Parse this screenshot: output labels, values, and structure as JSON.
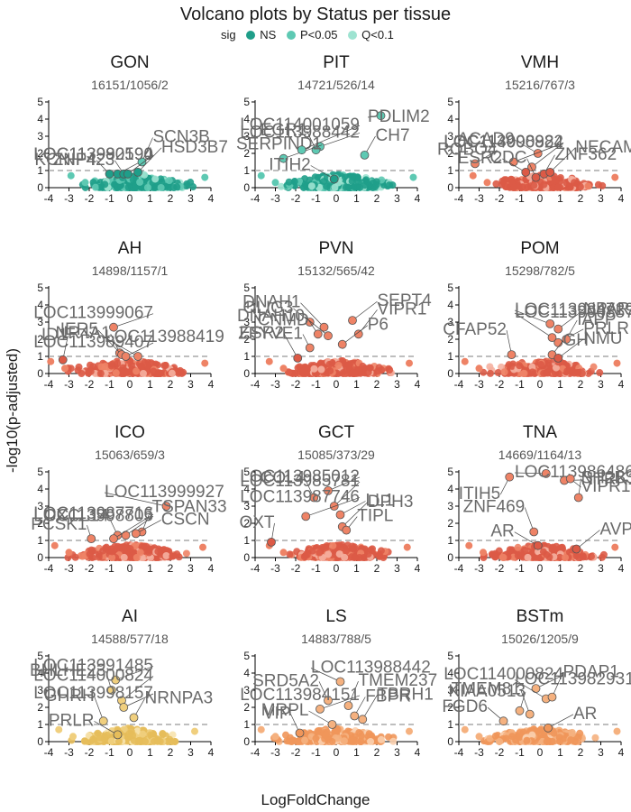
{
  "title": "Volcano plots by Status per tissue",
  "legend": {
    "title": "sig",
    "items": [
      {
        "label": "NS",
        "color": "#1f9e89"
      },
      {
        "label": "P<0.05",
        "color": "#5ec9b3"
      },
      {
        "label": "Q<0.1",
        "color": "#9ee3d1"
      }
    ]
  },
  "xlabel": "LogFoldChange",
  "ylabel": "-log10(p-adjusted)",
  "chart_data": [
    {
      "type": "scatter",
      "tissue": "GON",
      "subtitle": "16151/1056/2",
      "xlim": [
        -4,
        4
      ],
      "ylim": [
        0,
        5
      ],
      "xticks": [
        -4,
        -3,
        -2,
        -1,
        0,
        1,
        2,
        3,
        4
      ],
      "yticks": [
        0,
        1,
        2,
        3,
        4,
        5
      ],
      "threshold": 1,
      "colors": {
        "ns": "#1f9e89",
        "p": "#5ec9b3",
        "q": "#9ee3d1"
      },
      "cloud": [
        -2.6,
        3.5
      ],
      "highlights": [
        {
          "x": -1.0,
          "y": 0.8,
          "label": "KCNIP4"
        },
        {
          "x": -0.6,
          "y": 0.8,
          "label": "LOC113990590"
        },
        {
          "x": 0.6,
          "y": 1.5,
          "label": "SCN3B"
        },
        {
          "x": -0.3,
          "y": 0.8,
          "label": "ZNF423"
        },
        {
          "x": -0.1,
          "y": 0.8,
          "label": "LOC113982194"
        },
        {
          "x": 0.4,
          "y": 0.9,
          "label": "HSD3B7"
        }
      ]
    },
    {
      "type": "scatter",
      "tissue": "PIT",
      "subtitle": "14721/526/14",
      "xlim": [
        -4,
        4
      ],
      "ylim": [
        0,
        5
      ],
      "xticks": [
        -4,
        -3,
        -2,
        -1,
        0,
        1,
        2,
        3,
        4
      ],
      "yticks": [
        0,
        1,
        2,
        3,
        4,
        5
      ],
      "threshold": 1,
      "colors": {
        "ns": "#1f9e89",
        "p": "#5ec9b3",
        "q": "#9ee3d1"
      },
      "cloud": [
        -3.4,
        3.6
      ],
      "highlights": [
        {
          "x": -0.8,
          "y": 2.4,
          "label": "LOC113988442"
        },
        {
          "x": -1.0,
          "y": 2.2,
          "label": "EGR1"
        },
        {
          "x": 2.2,
          "y": 4.2,
          "label": "PDLIM2"
        },
        {
          "x": -2.6,
          "y": 1.7,
          "label": "SERPIND1"
        },
        {
          "x": 1.4,
          "y": 1.9,
          "label": "CH7"
        },
        {
          "x": -1.7,
          "y": 2.2,
          "label": "LOC114001059"
        },
        {
          "x": -0.1,
          "y": 0.5,
          "label": "ITIH2"
        }
      ]
    },
    {
      "type": "scatter",
      "tissue": "VMH",
      "subtitle": "15216/767/3",
      "xlim": [
        -4,
        4
      ],
      "ylim": [
        0,
        5
      ],
      "xticks": [
        -4,
        -3,
        -2,
        -1,
        0,
        1,
        2,
        3,
        4
      ],
      "yticks": [
        0,
        1,
        2,
        3,
        4,
        5
      ],
      "threshold": 1,
      "colors": {
        "ns": "#dc5a46",
        "p": "#ee8366",
        "q": "#f5b0a0"
      },
      "cloud": [
        -3.0,
        3.5
      ],
      "highlights": [
        {
          "x": -0.1,
          "y": 2.0,
          "label": "ACAD9"
        },
        {
          "x": -1.3,
          "y": 1.5,
          "label": "LOC114000824"
        },
        {
          "x": -0.4,
          "y": 1.2,
          "label": "LOC113998982"
        },
        {
          "x": -3.2,
          "y": 1.4,
          "label": "ROBO4"
        },
        {
          "x": 0.2,
          "y": 0.8,
          "label": "ZNF362"
        },
        {
          "x": 0.5,
          "y": 0.9,
          "label": "NECAM"
        },
        {
          "x": -0.7,
          "y": 0.9,
          "label": "ESR2"
        },
        {
          "x": -0.2,
          "y": 0.6,
          "label": "CDC"
        }
      ]
    },
    {
      "type": "scatter",
      "tissue": "AH",
      "subtitle": "14898/1157/1",
      "xlim": [
        -4,
        4
      ],
      "ylim": [
        0,
        5
      ],
      "xticks": [
        -4,
        -3,
        -2,
        -1,
        0,
        1,
        2,
        3,
        4
      ],
      "yticks": [
        0,
        1,
        2,
        3,
        4,
        5
      ],
      "threshold": 1,
      "colors": {
        "ns": "#dc5a46",
        "p": "#ee8366",
        "q": "#f5b0a0"
      },
      "cloud": [
        -3.6,
        3.5
      ],
      "highlights": [
        {
          "x": -0.8,
          "y": 2.7,
          "label": "LOC113999067"
        },
        {
          "x": -0.5,
          "y": 1.2,
          "label": "NR4A1"
        },
        {
          "x": -0.4,
          "y": 1.1,
          "label": "IER5"
        },
        {
          "x": -0.2,
          "y": 1.0,
          "label": "LOC113989407"
        },
        {
          "x": 0.4,
          "y": 1.0,
          "label": "LOC113988419"
        },
        {
          "x": -3.3,
          "y": 0.8,
          "label": "ID1"
        }
      ]
    },
    {
      "type": "scatter",
      "tissue": "PVN",
      "subtitle": "15132/565/42",
      "xlim": [
        -4,
        4
      ],
      "ylim": [
        0,
        5
      ],
      "xticks": [
        -4,
        -3,
        -2,
        -1,
        0,
        1,
        2,
        3,
        4
      ],
      "yticks": [
        0,
        1,
        2,
        3,
        4,
        5
      ],
      "threshold": 1,
      "colors": {
        "ns": "#dc5a46",
        "p": "#ee8366",
        "q": "#f5b0a0"
      },
      "cloud": [
        -3.0,
        3.4
      ],
      "highlights": [
        {
          "x": -1.3,
          "y": 3.0,
          "label": "OLIG3"
        },
        {
          "x": 0.8,
          "y": 3.1,
          "label": "SEPT4"
        },
        {
          "x": -0.6,
          "y": 2.7,
          "label": "DNAH1"
        },
        {
          "x": -0.9,
          "y": 2.3,
          "label": "CNMD"
        },
        {
          "x": -0.4,
          "y": 2.2,
          "label": "DNAH10"
        },
        {
          "x": 1.1,
          "y": 2.3,
          "label": "VIPR1"
        },
        {
          "x": -1.3,
          "y": 1.5,
          "label": "ZFYVE1"
        },
        {
          "x": 0.3,
          "y": 1.7,
          "label": "P6"
        },
        {
          "x": -1.9,
          "y": 0.9,
          "label": "ESR2"
        }
      ]
    },
    {
      "type": "scatter",
      "tissue": "POM",
      "subtitle": "15298/782/5",
      "xlim": [
        -4,
        4
      ],
      "ylim": [
        0,
        5
      ],
      "xticks": [
        -4,
        -3,
        -2,
        -1,
        0,
        1,
        2,
        3,
        4
      ],
      "yticks": [
        0,
        1,
        2,
        3,
        4,
        5
      ],
      "threshold": 1,
      "colors": {
        "ns": "#dc5a46",
        "p": "#ee8366",
        "q": "#f5b0a0"
      },
      "cloud": [
        -3.4,
        3.6
      ],
      "highlights": [
        {
          "x": 0.5,
          "y": 2.9,
          "label": "LOC113984729"
        },
        {
          "x": 0.9,
          "y": 2.6,
          "label": "NPAR"
        },
        {
          "x": 0.6,
          "y": 2.1,
          "label": "LOC113990857"
        },
        {
          "x": 0.9,
          "y": 1.8,
          "label": "PRLR"
        },
        {
          "x": 1.3,
          "y": 2.0,
          "label": "IAPP"
        },
        {
          "x": -1.4,
          "y": 1.1,
          "label": "CFAP52"
        },
        {
          "x": 0.6,
          "y": 1.1,
          "label": "GH"
        },
        {
          "x": 0.9,
          "y": 0.9,
          "label": "NMU"
        }
      ]
    },
    {
      "type": "scatter",
      "tissue": "ICO",
      "subtitle": "15063/659/3",
      "xlim": [
        -4,
        4
      ],
      "ylim": [
        0,
        5
      ],
      "xticks": [
        -4,
        -3,
        -2,
        -1,
        0,
        1,
        2,
        3,
        4
      ],
      "yticks": [
        0,
        1,
        2,
        3,
        4,
        5
      ],
      "threshold": 1,
      "colors": {
        "ns": "#dc5a46",
        "p": "#ee8366",
        "q": "#f5b0a0"
      },
      "cloud": [
        -3.4,
        3.4
      ],
      "highlights": [
        {
          "x": 1.8,
          "y": 3.0,
          "label": "LOC113999927"
        },
        {
          "x": -0.6,
          "y": 1.3,
          "label": "CXCL14"
        },
        {
          "x": 0.6,
          "y": 1.5,
          "label": "TSPAN33"
        },
        {
          "x": 0.3,
          "y": 1.4,
          "label": "CSCN"
        },
        {
          "x": -0.2,
          "y": 1.3,
          "label": "LOC113998805"
        },
        {
          "x": -0.8,
          "y": 1.1,
          "label": "LOC113987716"
        },
        {
          "x": -1.9,
          "y": 1.1,
          "label": "PCSK1"
        }
      ]
    },
    {
      "type": "scatter",
      "tissue": "GCT",
      "subtitle": "15085/373/29",
      "xlim": [
        -4,
        4
      ],
      "ylim": [
        0,
        5
      ],
      "xticks": [
        -4,
        -3,
        -2,
        -1,
        0,
        1,
        2,
        3,
        4
      ],
      "yticks": [
        0,
        1,
        2,
        3,
        4,
        5
      ],
      "threshold": 1,
      "colors": {
        "ns": "#dc5a46",
        "p": "#ee8366",
        "q": "#f5b0a0"
      },
      "cloud": [
        -3.0,
        3.3
      ],
      "highlights": [
        {
          "x": -0.4,
          "y": 3.9,
          "label": "LOC113985012"
        },
        {
          "x": -1.1,
          "y": 3.5,
          "label": "COL4"
        },
        {
          "x": -0.1,
          "y": 3.0,
          "label": "LOC113985781"
        },
        {
          "x": 0.2,
          "y": 2.5,
          "label": "LL1"
        },
        {
          "x": -1.5,
          "y": 2.4,
          "label": "LOC113987746"
        },
        {
          "x": 0.3,
          "y": 1.8,
          "label": "DPH3"
        },
        {
          "x": 0.5,
          "y": 1.6,
          "label": "TIPL"
        },
        {
          "x": -3.2,
          "y": 0.9,
          "label": "OXT"
        }
      ]
    },
    {
      "type": "scatter",
      "tissue": "TNA",
      "subtitle": "14669/1164/13",
      "xlim": [
        -4,
        4
      ],
      "ylim": [
        0,
        5
      ],
      "xticks": [
        -4,
        -3,
        -2,
        -1,
        0,
        1,
        2,
        3,
        4
      ],
      "yticks": [
        0,
        1,
        2,
        3,
        4,
        5
      ],
      "threshold": 1,
      "colors": {
        "ns": "#dc5a46",
        "p": "#ee8366",
        "q": "#f5b0a0"
      },
      "cloud": [
        -3.2,
        3.5
      ],
      "highlights": [
        {
          "x": 0.3,
          "y": 4.9,
          "label": "LOC113986486"
        },
        {
          "x": 1.2,
          "y": 4.5,
          "label": "NTRK1"
        },
        {
          "x": 1.5,
          "y": 4.6,
          "label": "VIPR1"
        },
        {
          "x": -1.5,
          "y": 4.7,
          "label": "ITIH5"
        },
        {
          "x": 1.9,
          "y": 3.5,
          "label": "SH2B3"
        },
        {
          "x": -0.3,
          "y": 1.5,
          "label": "ZNF469"
        },
        {
          "x": -0.1,
          "y": 0.7,
          "label": "AR"
        },
        {
          "x": 1.8,
          "y": 0.5,
          "label": "AVP"
        }
      ]
    },
    {
      "type": "scatter",
      "tissue": "AI",
      "subtitle": "14588/577/18",
      "xlim": [
        -4,
        4
      ],
      "ylim": [
        0,
        5
      ],
      "xticks": [
        -4,
        -3,
        -2,
        -1,
        0,
        1,
        2,
        3,
        4
      ],
      "yticks": [
        0,
        1,
        2,
        3,
        4,
        5
      ],
      "threshold": 1,
      "colors": {
        "ns": "#e6bd5a",
        "p": "#f0cf7e",
        "q": "#f7e3ae"
      },
      "cloud": [
        -3.2,
        3.0
      ],
      "highlights": [
        {
          "x": -0.7,
          "y": 3.6,
          "label": "LOC113991485"
        },
        {
          "x": -0.9,
          "y": 3.0,
          "label": "BHLHE23"
        },
        {
          "x": -0.4,
          "y": 2.4,
          "label": "LOC114000824"
        },
        {
          "x": -0.3,
          "y": 2.0,
          "label": "LOC113998157"
        },
        {
          "x": 0.2,
          "y": 1.4,
          "label": "NRNPA3"
        },
        {
          "x": -1.3,
          "y": 1.2,
          "label": "GHRH"
        },
        {
          "x": -0.6,
          "y": 0.4,
          "label": "PRLR"
        }
      ]
    },
    {
      "type": "scatter",
      "tissue": "LS",
      "subtitle": "14883/788/5",
      "xlim": [
        -4,
        4
      ],
      "ylim": [
        0,
        5
      ],
      "xticks": [
        -4,
        -3,
        -2,
        -1,
        0,
        1,
        2,
        3,
        4
      ],
      "yticks": [
        0,
        1,
        2,
        3,
        4,
        5
      ],
      "threshold": 1,
      "colors": {
        "ns": "#f0965a",
        "p": "#f5b17f",
        "q": "#f9cfae"
      },
      "cloud": [
        -3.4,
        3.4
      ],
      "highlights": [
        {
          "x": 0.2,
          "y": 3.5,
          "label": "LOC113988442"
        },
        {
          "x": -0.4,
          "y": 2.4,
          "label": "SRD5A2"
        },
        {
          "x": 0.6,
          "y": 2.1,
          "label": "TMEM237"
        },
        {
          "x": -0.8,
          "y": 1.9,
          "label": "LOC113984151"
        },
        {
          "x": 0.9,
          "y": 1.5,
          "label": "FBPR"
        },
        {
          "x": 1.3,
          "y": 1.3,
          "label": "TBRH1"
        },
        {
          "x": -0.2,
          "y": 1.0,
          "label": "MRPL"
        },
        {
          "x": -1.8,
          "y": 0.5,
          "label": "VIP"
        }
      ]
    },
    {
      "type": "scatter",
      "tissue": "BSTm",
      "subtitle": "15026/1205/9",
      "xlim": [
        -4,
        4
      ],
      "ylim": [
        0,
        5
      ],
      "xticks": [
        -4,
        -3,
        -2,
        -1,
        0,
        1,
        2,
        3,
        4
      ],
      "yticks": [
        0,
        1,
        2,
        3,
        4,
        5
      ],
      "threshold": 1,
      "colors": {
        "ns": "#f0965a",
        "p": "#f5b17f",
        "q": "#f9cfae"
      },
      "cloud": [
        -3.4,
        3.6
      ],
      "highlights": [
        {
          "x": -0.2,
          "y": 3.1,
          "label": "LOC114000824"
        },
        {
          "x": 0.3,
          "y": 2.5,
          "label": "LOC113982931"
        },
        {
          "x": 0.6,
          "y": 2.6,
          "label": "PDAP1"
        },
        {
          "x": 0.4,
          "y": 0.8,
          "label": "AR"
        },
        {
          "x": -1.0,
          "y": 1.8,
          "label": "KIAA0513"
        },
        {
          "x": -0.5,
          "y": 1.6,
          "label": "TMEM81"
        },
        {
          "x": -1.8,
          "y": 1.2,
          "label": "FGD6"
        }
      ]
    }
  ]
}
